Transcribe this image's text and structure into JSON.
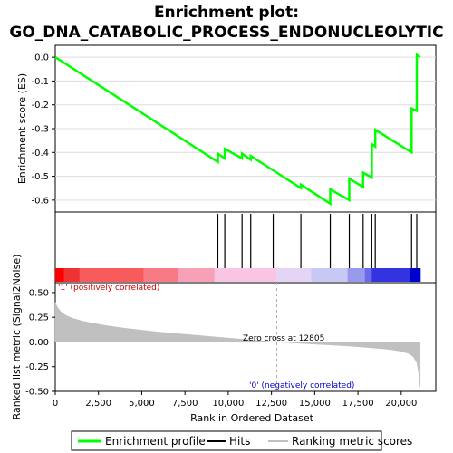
{
  "chart_data": {
    "type": "line",
    "title": [
      "Enrichment plot:",
      "GO_DNA_CATABOLIC_PROCESS_ENDONUCLEOLYTIC"
    ],
    "xlabel": "Rank in Ordered Dataset",
    "xlim": [
      0,
      22000
    ],
    "x_ticks": [
      {
        "value": 0,
        "label": "0"
      },
      {
        "value": 2500,
        "label": "2,500"
      },
      {
        "value": 5000,
        "label": "5,000"
      },
      {
        "value": 7500,
        "label": "7,500"
      },
      {
        "value": 10000,
        "label": "10,000"
      },
      {
        "value": 12500,
        "label": "12,500"
      },
      {
        "value": 15000,
        "label": "15,000"
      },
      {
        "value": 17500,
        "label": "17,500"
      },
      {
        "value": 20000,
        "label": "20,000"
      }
    ],
    "es_panel": {
      "ylabel": "Enrichment score (ES)",
      "ylim": [
        -0.65,
        0.05
      ],
      "y_ticks": [
        {
          "value": 0.0,
          "label": "0.0"
        },
        {
          "value": -0.1,
          "label": "-0.1"
        },
        {
          "value": -0.2,
          "label": "-0.2"
        },
        {
          "value": -0.3,
          "label": "-0.3"
        },
        {
          "value": -0.4,
          "label": "-0.4"
        },
        {
          "value": -0.5,
          "label": "-0.5"
        },
        {
          "value": -0.6,
          "label": "-0.6"
        }
      ],
      "color": "#00ff00",
      "x": [
        0,
        9400,
        9400,
        9800,
        9800,
        10800,
        10800,
        11300,
        11300,
        12600,
        12600,
        14200,
        14200,
        15900,
        15900,
        17000,
        17000,
        17800,
        17800,
        18300,
        18300,
        18500,
        18500,
        20600,
        20600,
        20900,
        20900,
        21100
      ],
      "y": [
        0.0,
        -0.44,
        -0.405,
        -0.425,
        -0.385,
        -0.425,
        -0.405,
        -0.43,
        -0.415,
        -0.475,
        -0.475,
        -0.55,
        -0.535,
        -0.615,
        -0.555,
        -0.6,
        -0.51,
        -0.545,
        -0.485,
        -0.505,
        -0.365,
        -0.375,
        -0.305,
        -0.4,
        -0.215,
        -0.225,
        0.01,
        0.0
      ]
    },
    "hits": [
      9400,
      9800,
      10800,
      11300,
      12600,
      14200,
      15900,
      17000,
      17800,
      18300,
      18500,
      20600,
      20900
    ],
    "heatmap": {
      "colors": [
        "#ff0000",
        "#ee3333",
        "#f75b5b",
        "#f77a85",
        "#f7a0b7",
        "#f8c5e3",
        "#e5d5f5",
        "#c8c8f5",
        "#9999ee",
        "#6b6be8",
        "#3333e0",
        "#0000cc"
      ],
      "stops": [
        0,
        500,
        1400,
        5100,
        7100,
        9200,
        12800,
        14800,
        16900,
        17900,
        18300,
        20500,
        21100
      ]
    },
    "metric_panel": {
      "ylabel": "Ranked list metric (Signal2Noise)",
      "ylim": [
        -0.5,
        0.6
      ],
      "y_ticks": [
        {
          "value": 0.5,
          "label": "0.50"
        },
        {
          "value": 0.25,
          "label": "0.25"
        },
        {
          "value": 0.0,
          "label": "0.00"
        },
        {
          "value": -0.25,
          "label": "-0.25"
        },
        {
          "value": -0.5,
          "label": "-0.50"
        }
      ],
      "fill_color": "#c0c0c0",
      "x": [
        0,
        100,
        300,
        600,
        1000,
        1500,
        2000,
        3000,
        4000,
        5000,
        6000,
        7000,
        8000,
        9000,
        10000,
        11000,
        12000,
        12805,
        14000,
        15000,
        16000,
        17000,
        18000,
        19000,
        19500,
        20000,
        20400,
        20700,
        20900,
        21000,
        21100
      ],
      "y": [
        0.4,
        0.36,
        0.31,
        0.27,
        0.24,
        0.215,
        0.195,
        0.165,
        0.14,
        0.12,
        0.1,
        0.085,
        0.07,
        0.055,
        0.04,
        0.025,
        0.012,
        0.0,
        -0.012,
        -0.022,
        -0.032,
        -0.042,
        -0.055,
        -0.07,
        -0.08,
        -0.095,
        -0.115,
        -0.15,
        -0.21,
        -0.3,
        -0.46
      ]
    },
    "annotations": {
      "pos_label": "'1' (positively correlated)",
      "pos_color": "#cc0000",
      "neg_label": "'0' (negatively correlated)",
      "neg_color": "#0000cc",
      "zero_cross_label": "Zero cross at 12805",
      "zero_cross_x": 12805
    },
    "legend": {
      "position": "bottom",
      "items": [
        {
          "label": "Enrichment profile",
          "color": "#00ff00"
        },
        {
          "label": "Hits",
          "color": "#000000"
        },
        {
          "label": "Ranking metric scores",
          "color": "#c0c0c0"
        }
      ]
    }
  }
}
